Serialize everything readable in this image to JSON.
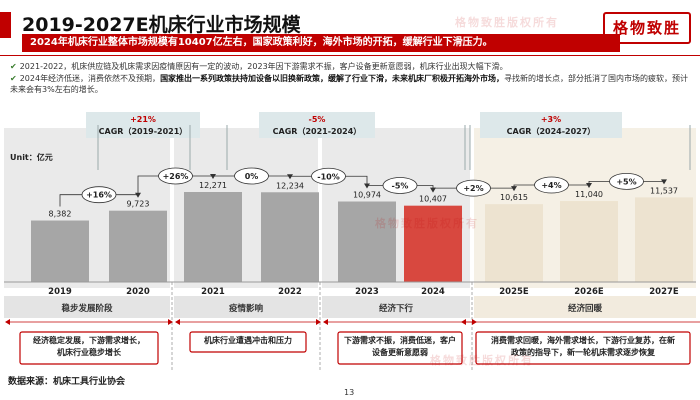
{
  "header": {
    "title": "2019-2027E机床行业市场规模",
    "subtitle": "2024年机床行业整体市场规模有10407亿左右，国家政策利好，海外市场的开拓，缓解行业下滑压力。",
    "logo": "格物致胜",
    "watermark": "格物致胜版权所有"
  },
  "bullets": [
    {
      "text": "2021-2022，机床供应链及机床需求因疫情原因有一定的波动，2023年因下游需求不振，客户设备更新意愿弱，机床行业出现大幅下滑。",
      "bold": ""
    },
    {
      "text": "2024年经济低迷，消费依然不及预期，",
      "bold": "国家推出一系列政策扶持加设备以旧换新政策，缓解了行业下滑，未来机床厂积极开拓海外市场，",
      "tail": "寻找新的增长点，部分抵消了国内市场的疲软，预计未来会有3%左右的增长。"
    }
  ],
  "unit_label": "Unit：亿元",
  "footer": {
    "source": "数据来源：机床工具行业协会",
    "page": "13"
  },
  "colors": {
    "brand_red": "#c00000",
    "bar_gray": "#a6a6a6",
    "bar_highlight": "#d8483f",
    "bar_beige": "#ede3d0",
    "phase_band_gray": "#d9d9d9",
    "phase_band_beige": "#ede3d0",
    "cagr_box": "#dde8ea"
  },
  "chart_data": {
    "type": "bar",
    "categories": [
      "2019",
      "2020",
      "2021",
      "2022",
      "2023",
      "2024",
      "2025E",
      "2026E",
      "2027E"
    ],
    "values": [
      8382,
      9723,
      12271,
      12234,
      10974,
      10407,
      10615,
      11040,
      11537
    ],
    "value_labels": [
      "8,382",
      "9,723",
      "12,271",
      "12,234",
      "10,974",
      "10,407",
      "10,615",
      "11,040",
      "11,537"
    ],
    "highlight_index": 5,
    "growth_labels": [
      "+16%",
      "+26%",
      "0%",
      "-10%",
      "-5%",
      "+2%",
      "+4%",
      "+5%"
    ],
    "ylabel": "亿元",
    "ylim": [
      0,
      14000
    ],
    "cagr": [
      {
        "rate": "+21%",
        "label": "CAGR（2019-2021）"
      },
      {
        "rate": "-5%",
        "label": "CAGR（2021-2024）"
      },
      {
        "rate": "+3%",
        "label": "CAGR（2024-2027）"
      }
    ],
    "phases": [
      {
        "name": "稳步发展阶段",
        "desc": "经济稳定发展，下游需求增长，机床行业稳步增长"
      },
      {
        "name": "疫情影响",
        "desc": "机床行业遭遇冲击和压力"
      },
      {
        "name": "经济下行",
        "desc": "下游需求不振，消费低迷，客户设备更新意愿弱"
      },
      {
        "name": "经济回暖",
        "desc": "消费需求回暖，海外需求增长，下游行业复苏，在新政策的指导下，新一轮机床需求逐步恢复"
      }
    ]
  }
}
